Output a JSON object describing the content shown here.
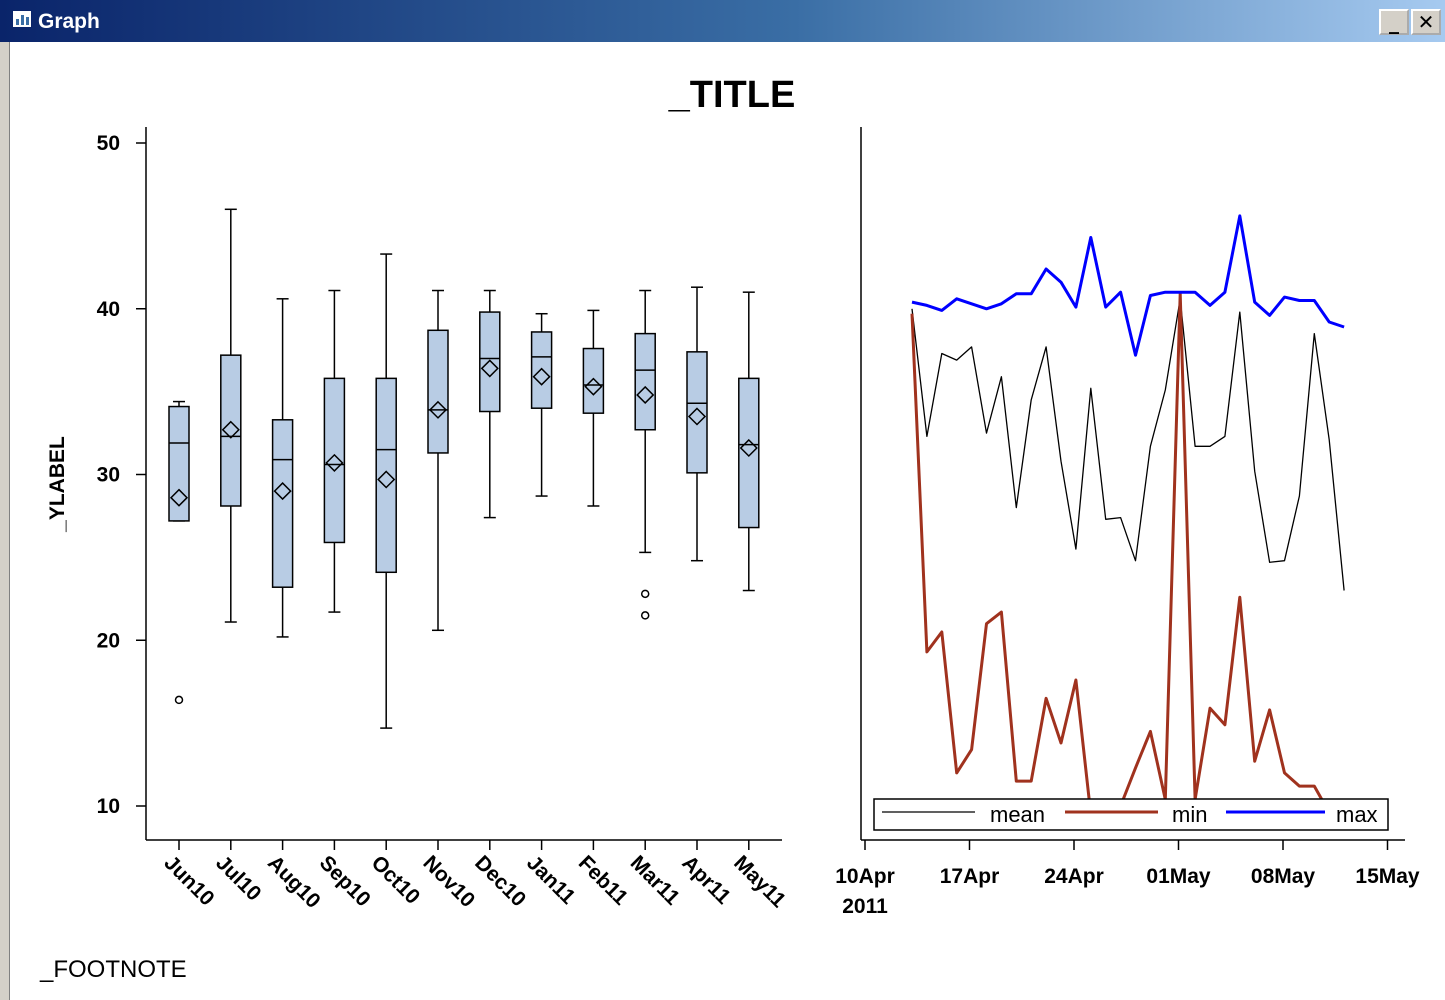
{
  "window": {
    "title": "Graph",
    "minimize_label": "_",
    "close_label": "✕"
  },
  "figure": {
    "title": "_TITLE",
    "footnote": "_FOOTNOTE"
  },
  "colors": {
    "box_fill": "#b8cce4",
    "mean_line": "#000000",
    "min_line": "#a0321e",
    "max_line": "#0000ff"
  },
  "chart_data": [
    {
      "type": "box",
      "ylabel": "_YLABEL",
      "ylim": [
        8,
        51
      ],
      "yticks": [
        10,
        20,
        30,
        40,
        50
      ],
      "categories": [
        "Jun10",
        "Jul10",
        "Aug10",
        "Sep10",
        "Oct10",
        "Nov10",
        "Dec10",
        "Jan11",
        "Feb11",
        "Mar11",
        "Apr11",
        "May11"
      ],
      "boxes": [
        {
          "category": "Jun10",
          "whisker_low": 27.2,
          "q1": 27.2,
          "median": 31.9,
          "q3": 34.1,
          "whisker_high": 34.4,
          "mean": 28.6,
          "outliers": [
            16.4
          ]
        },
        {
          "category": "Jul10",
          "whisker_low": 21.1,
          "q1": 28.1,
          "median": 32.3,
          "q3": 37.2,
          "whisker_high": 46.0,
          "mean": 32.7,
          "outliers": []
        },
        {
          "category": "Aug10",
          "whisker_low": 20.2,
          "q1": 23.2,
          "median": 30.9,
          "q3": 33.3,
          "whisker_high": 40.6,
          "mean": 29.0,
          "outliers": []
        },
        {
          "category": "Sep10",
          "whisker_low": 21.7,
          "q1": 25.9,
          "median": 30.6,
          "q3": 35.8,
          "whisker_high": 41.1,
          "mean": 30.7,
          "outliers": []
        },
        {
          "category": "Oct10",
          "whisker_low": 14.7,
          "q1": 24.1,
          "median": 31.5,
          "q3": 35.8,
          "whisker_high": 43.3,
          "mean": 29.7,
          "outliers": []
        },
        {
          "category": "Nov10",
          "whisker_low": 20.6,
          "q1": 31.3,
          "median": 33.9,
          "q3": 38.7,
          "whisker_high": 41.1,
          "mean": 33.9,
          "outliers": []
        },
        {
          "category": "Dec10",
          "whisker_low": 27.4,
          "q1": 33.8,
          "median": 37.0,
          "q3": 39.8,
          "whisker_high": 41.1,
          "mean": 36.4,
          "outliers": []
        },
        {
          "category": "Jan11",
          "whisker_low": 28.7,
          "q1": 34.0,
          "median": 37.1,
          "q3": 38.6,
          "whisker_high": 39.7,
          "mean": 35.9,
          "outliers": []
        },
        {
          "category": "Feb11",
          "whisker_low": 28.1,
          "q1": 33.7,
          "median": 35.4,
          "q3": 37.6,
          "whisker_high": 39.9,
          "mean": 35.3,
          "outliers": []
        },
        {
          "category": "Mar11",
          "whisker_low": 25.3,
          "q1": 32.7,
          "median": 36.3,
          "q3": 38.5,
          "whisker_high": 41.1,
          "mean": 34.8,
          "outliers": [
            22.8,
            21.5
          ]
        },
        {
          "category": "Apr11",
          "whisker_low": 24.8,
          "q1": 30.1,
          "median": 34.3,
          "q3": 37.4,
          "whisker_high": 41.3,
          "mean": 33.5,
          "outliers": []
        },
        {
          "category": "May11",
          "whisker_low": 23.0,
          "q1": 26.8,
          "median": 31.8,
          "q3": 35.8,
          "whisker_high": 41.0,
          "mean": 31.6,
          "outliers": []
        }
      ]
    },
    {
      "type": "line",
      "ylim": [
        8,
        51
      ],
      "x_start": "2011-04-12",
      "x_step_days": 1,
      "xticks": [
        "10Apr",
        "17Apr",
        "24Apr",
        "01May",
        "08May",
        "15May"
      ],
      "xtick_year": "2011",
      "legend_position": "bottom",
      "series": [
        {
          "name": "mean",
          "values": [
            40.0,
            32.3,
            37.3,
            36.9,
            37.7,
            32.5,
            35.9,
            28.0,
            34.5,
            37.7,
            30.8,
            25.5,
            35.2,
            27.3,
            27.4,
            24.8,
            31.7,
            35.1,
            40.6,
            31.7,
            31.7,
            32.3,
            39.8,
            30.2,
            24.7,
            24.8,
            28.7,
            38.5,
            32.1,
            23.0
          ]
        },
        {
          "name": "min",
          "values": [
            39.7,
            19.3,
            20.5,
            12.0,
            13.4,
            21.0,
            21.7,
            11.5,
            11.5,
            16.5,
            13.8,
            17.6,
            9.5,
            9.5,
            10.0,
            12.3,
            14.5,
            10.4,
            40.9,
            10.4,
            15.9,
            14.9,
            22.6,
            12.7,
            15.8,
            12.0,
            11.2,
            11.2,
            9.6,
            10.1
          ]
        },
        {
          "name": "max",
          "values": [
            40.4,
            40.2,
            39.9,
            40.6,
            40.3,
            40.0,
            40.3,
            40.9,
            40.9,
            42.4,
            41.6,
            40.1,
            44.3,
            40.1,
            41.0,
            37.2,
            40.8,
            41.0,
            41.0,
            41.0,
            40.2,
            41.0,
            45.6,
            40.4,
            39.6,
            40.7,
            40.5,
            40.5,
            39.2,
            38.9
          ]
        }
      ]
    }
  ]
}
